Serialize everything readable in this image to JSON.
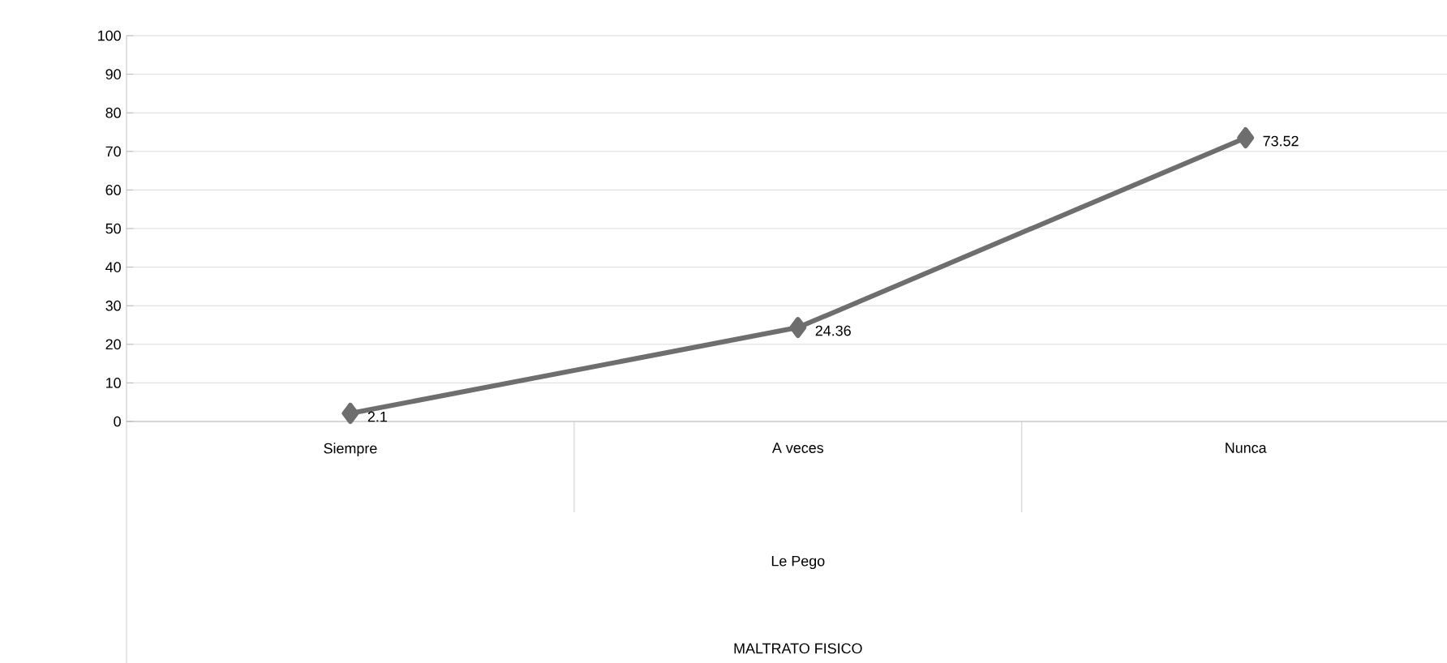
{
  "chart_data": {
    "type": "line",
    "categories": [
      "Siempre",
      "A veces",
      "Nunca"
    ],
    "values": [
      2.1,
      24.36,
      73.52
    ],
    "color": "#6e6e6e",
    "annotations": [
      "Le Pego",
      "MALTRATO FISICO"
    ],
    "ylim": [
      0,
      100
    ],
    "yticks": [
      0,
      10,
      20,
      30,
      40,
      50,
      60,
      70,
      80,
      90,
      100
    ],
    "grid": "y",
    "marker": "diamond",
    "line_style": "solid",
    "data_labels": true
  }
}
